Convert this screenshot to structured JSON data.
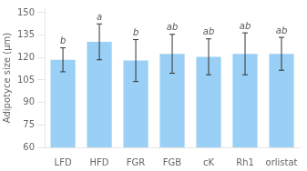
{
  "chart_data": {
    "type": "bar",
    "categories": [
      "LFD",
      "HFD",
      "FGR",
      "FGB",
      "cK",
      "Rh1",
      "orlistat"
    ],
    "values": [
      118.5,
      130.5,
      118.0,
      122.5,
      120.5,
      122.5,
      122.5
    ],
    "errors": [
      8.0,
      12.0,
      14.0,
      13.0,
      12.0,
      14.0,
      11.0
    ],
    "annotations": [
      "b",
      "a",
      "b",
      "ab",
      "ab",
      "ab",
      "ab"
    ],
    "ylabel": "Adipotyce size (μm)",
    "ylim": [
      60,
      153
    ],
    "yticks": [
      60,
      75,
      90,
      105,
      120,
      135,
      150
    ],
    "grid": false
  }
}
